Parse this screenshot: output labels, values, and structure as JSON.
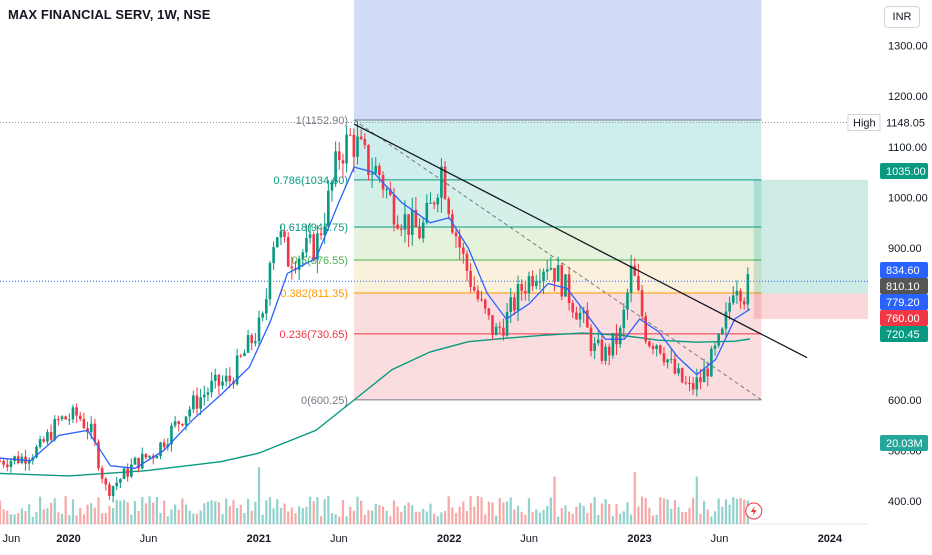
{
  "header": {
    "title": "MAX FINANCIAL SERV, 1W, NSE",
    "currency": "INR"
  },
  "price_axis": {
    "ticks": [
      {
        "v": 1300,
        "label": "1300.00"
      },
      {
        "v": 1200,
        "label": "1200.00"
      },
      {
        "v": 1100,
        "label": "1100.00"
      },
      {
        "v": 1000,
        "label": "1000.00"
      },
      {
        "v": 900,
        "label": "900.00"
      },
      {
        "v": 600,
        "label": "600.00"
      },
      {
        "v": 500,
        "label": "500.00"
      },
      {
        "v": 400,
        "label": "400.00"
      }
    ],
    "high_label": "High",
    "high_value": "1148.05",
    "badges": [
      {
        "name": "fib-1035-badge",
        "v": 1035,
        "label": "1035.00",
        "bg": "#089981",
        "fg": "#ffffff"
      },
      {
        "name": "last-price-badge",
        "v": 834.6,
        "label": "834.60",
        "bg": "#2962ff",
        "fg": "#ffffff"
      },
      {
        "name": "sma-810-badge",
        "v": 810.1,
        "label": "810.10",
        "bg": "#555555",
        "fg": "#ffffff"
      },
      {
        "name": "ema-779-badge",
        "v": 779.2,
        "label": "779.20",
        "bg": "#2962ff",
        "fg": "#ffffff"
      },
      {
        "name": "stop-760-badge",
        "v": 760,
        "label": "760.00",
        "bg": "#f23645",
        "fg": "#ffffff"
      },
      {
        "name": "sma200-720-badge",
        "v": 720.45,
        "label": "720.45",
        "bg": "#089981",
        "fg": "#ffffff"
      },
      {
        "name": "volume-badge",
        "v": 455,
        "label": "20.03M",
        "bg": "#26a69a",
        "fg": "#ffffff"
      }
    ]
  },
  "time_axis": {
    "labels": [
      {
        "t": 2019.7,
        "label": "Jun",
        "bold": false
      },
      {
        "t": 2020.0,
        "label": "2020",
        "bold": true
      },
      {
        "t": 2020.42,
        "label": "Jun",
        "bold": false
      },
      {
        "t": 2021.0,
        "label": "2021",
        "bold": true
      },
      {
        "t": 2021.42,
        "label": "Jun",
        "bold": false
      },
      {
        "t": 2022.0,
        "label": "2022",
        "bold": true
      },
      {
        "t": 2022.42,
        "label": "Jun",
        "bold": false
      },
      {
        "t": 2023.0,
        "label": "2023",
        "bold": true
      },
      {
        "t": 2023.42,
        "label": "Jun",
        "bold": false
      },
      {
        "t": 2024.0,
        "label": "2024",
        "bold": true
      }
    ]
  },
  "fib_levels": [
    {
      "v": 1152.9,
      "label": "1(1152.90)",
      "color": "#787b86",
      "fill": "#dddddd"
    },
    {
      "v": 1034.6,
      "label": "0.786(1034.60)",
      "color": "#089981",
      "fill": "#c9ecec"
    },
    {
      "v": 941.75,
      "label": "0.618(941.75)",
      "color": "#089981",
      "fill": "#cfeee6"
    },
    {
      "v": 876.55,
      "label": "0.5(876.55)",
      "color": "#4caf50",
      "fill": "#e2f1d8"
    },
    {
      "v": 811.35,
      "label": "0.382(811.35)",
      "color": "#ff9800",
      "fill": "#f9efd8"
    },
    {
      "v": 730.65,
      "label": "0.236(730.65)",
      "color": "#f23645",
      "fill": "#fadadb"
    },
    {
      "v": 600.25,
      "label": "0(600.25)",
      "color": "#787b86",
      "fill": "#fadadb"
    }
  ],
  "chart_data": {
    "type": "candlestick",
    "symbol": "MAX FINANCIAL SERV",
    "interval": "1W",
    "exchange": "NSE",
    "currency": "INR",
    "ylim": [
      355,
      1390
    ],
    "x_range": [
      2019.64,
      2024.2
    ],
    "last_price": 834.6,
    "high": 1148.05,
    "price_path": [
      [
        2019.64,
        480
      ],
      [
        2019.75,
        485
      ],
      [
        2019.85,
        505
      ],
      [
        2019.95,
        560
      ],
      [
        2020.05,
        570
      ],
      [
        2020.12,
        535
      ],
      [
        2020.2,
        420
      ],
      [
        2020.26,
        440
      ],
      [
        2020.35,
        475
      ],
      [
        2020.45,
        495
      ],
      [
        2020.55,
        545
      ],
      [
        2020.65,
        590
      ],
      [
        2020.75,
        625
      ],
      [
        2020.85,
        640
      ],
      [
        2020.95,
        710
      ],
      [
        2021.03,
        760
      ],
      [
        2021.06,
        905
      ],
      [
        2021.1,
        935
      ],
      [
        2021.15,
        880
      ],
      [
        2021.22,
        890
      ],
      [
        2021.3,
        905
      ],
      [
        2021.36,
        985
      ],
      [
        2021.42,
        1085
      ],
      [
        2021.48,
        1115
      ],
      [
        2021.52,
        1100
      ],
      [
        2021.57,
        1065
      ],
      [
        2021.63,
        1050
      ],
      [
        2021.7,
        985
      ],
      [
        2021.78,
        950
      ],
      [
        2021.85,
        930
      ],
      [
        2021.9,
        975
      ],
      [
        2021.96,
        1060
      ],
      [
        2022.02,
        950
      ],
      [
        2022.08,
        870
      ],
      [
        2022.16,
        790
      ],
      [
        2022.24,
        730
      ],
      [
        2022.3,
        760
      ],
      [
        2022.38,
        820
      ],
      [
        2022.46,
        860
      ],
      [
        2022.52,
        875
      ],
      [
        2022.58,
        840
      ],
      [
        2022.64,
        800
      ],
      [
        2022.7,
        760
      ],
      [
        2022.76,
        700
      ],
      [
        2022.82,
        690
      ],
      [
        2022.9,
        730
      ],
      [
        2022.96,
        860
      ],
      [
        2023.0,
        790
      ],
      [
        2023.04,
        720
      ],
      [
        2023.1,
        715
      ],
      [
        2023.18,
        655
      ],
      [
        2023.26,
        620
      ],
      [
        2023.32,
        640
      ],
      [
        2023.38,
        680
      ],
      [
        2023.44,
        730
      ],
      [
        2023.5,
        845
      ],
      [
        2023.55,
        810
      ],
      [
        2023.58,
        834.6
      ]
    ],
    "ema_path": [
      [
        2019.64,
        485
      ],
      [
        2019.8,
        480
      ],
      [
        2019.95,
        530
      ],
      [
        2020.1,
        540
      ],
      [
        2020.22,
        470
      ],
      [
        2020.35,
        465
      ],
      [
        2020.5,
        500
      ],
      [
        2020.65,
        560
      ],
      [
        2020.8,
        610
      ],
      [
        2020.95,
        665
      ],
      [
        2021.06,
        755
      ],
      [
        2021.15,
        850
      ],
      [
        2021.3,
        880
      ],
      [
        2021.42,
        990
      ],
      [
        2021.5,
        1060
      ],
      [
        2021.6,
        1050
      ],
      [
        2021.75,
        990
      ],
      [
        2021.9,
        950
      ],
      [
        2022.0,
        960
      ],
      [
        2022.1,
        900
      ],
      [
        2022.2,
        810
      ],
      [
        2022.3,
        760
      ],
      [
        2022.42,
        790
      ],
      [
        2022.52,
        830
      ],
      [
        2022.62,
        820
      ],
      [
        2022.72,
        770
      ],
      [
        2022.82,
        720
      ],
      [
        2022.92,
        720
      ],
      [
        2023.0,
        760
      ],
      [
        2023.1,
        735
      ],
      [
        2023.2,
        685
      ],
      [
        2023.3,
        650
      ],
      [
        2023.4,
        680
      ],
      [
        2023.5,
        760
      ],
      [
        2023.58,
        779.2
      ]
    ],
    "sma200_path": [
      [
        2019.64,
        455
      ],
      [
        2020.0,
        450
      ],
      [
        2020.4,
        460
      ],
      [
        2020.8,
        478
      ],
      [
        2021.0,
        495
      ],
      [
        2021.3,
        540
      ],
      [
        2021.5,
        600
      ],
      [
        2021.7,
        660
      ],
      [
        2021.9,
        695
      ],
      [
        2022.1,
        715
      ],
      [
        2022.3,
        722
      ],
      [
        2022.5,
        728
      ],
      [
        2022.7,
        732
      ],
      [
        2022.9,
        728
      ],
      [
        2023.1,
        718
      ],
      [
        2023.3,
        714
      ],
      [
        2023.5,
        716
      ],
      [
        2023.58,
        720.45
      ]
    ],
    "trendline": {
      "from": [
        2021.5,
        1145
      ],
      "to": [
        2023.64,
        730
      ]
    },
    "position_tool": {
      "entry": 810.1,
      "target": 1035,
      "stop": 760,
      "t_start": 2023.6,
      "t_end": 2024.2
    },
    "volume": {
      "unit": "M",
      "last_value": "20.03M",
      "max": 20.03,
      "spikes": [
        [
          2021.0,
          12
        ],
        [
          2022.56,
          10
        ],
        [
          2022.98,
          11
        ],
        [
          2023.3,
          10
        ],
        [
          2023.58,
          20.03
        ]
      ]
    }
  }
}
